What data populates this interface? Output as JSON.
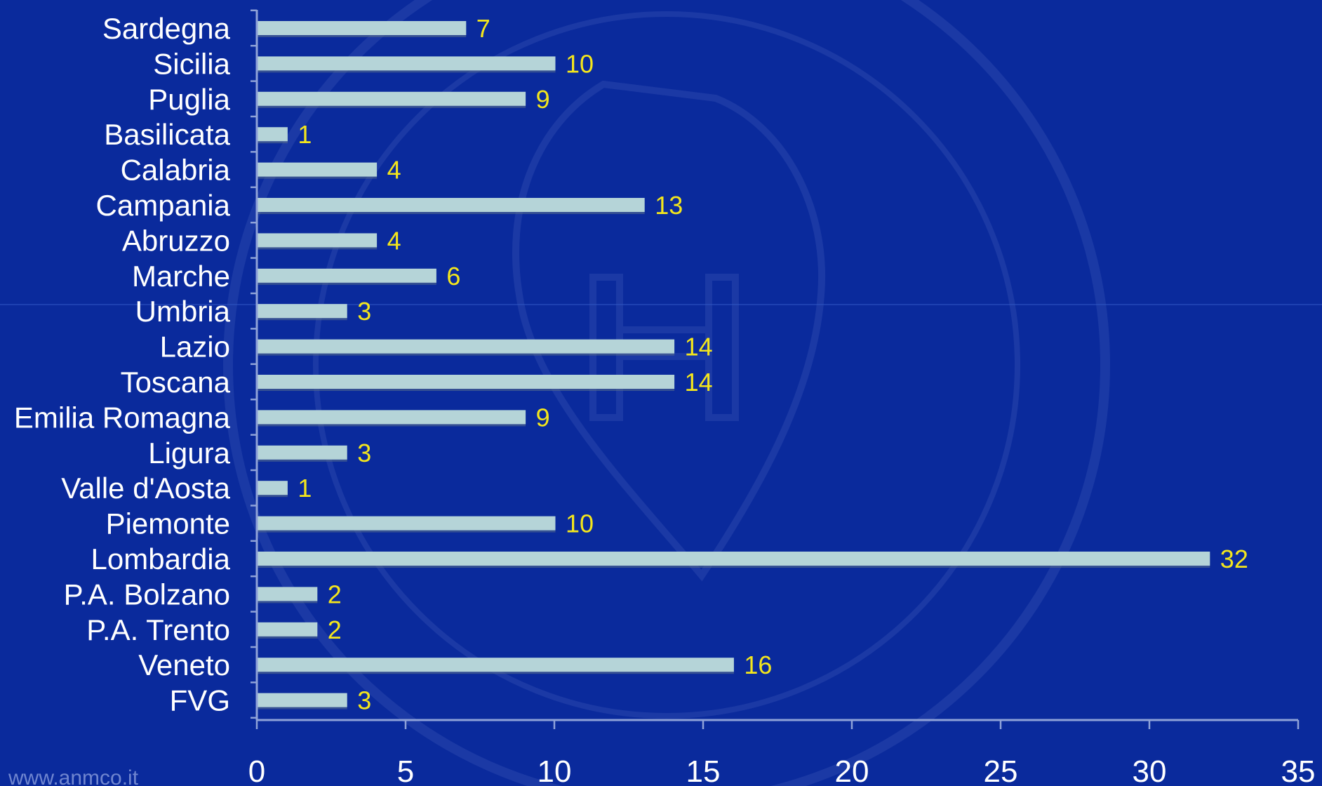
{
  "colors": {
    "background": "#0a2a9c",
    "bar": "#b5d4d8",
    "value_label": "#f4e61c",
    "text": "#ffffff",
    "axis": "#8fa2d8"
  },
  "footer": "www.anmco.it",
  "chart_data": {
    "type": "bar",
    "orientation": "horizontal",
    "title": "",
    "xlabel": "",
    "ylabel": "",
    "xlim": [
      0,
      35
    ],
    "ticks": [
      0,
      5,
      10,
      15,
      20,
      25,
      30,
      35
    ],
    "grid": false,
    "legend": "none",
    "categories": [
      "Sardegna",
      "Sicilia",
      "Puglia",
      "Basilicata",
      "Calabria",
      "Campania",
      "Abruzzo",
      "Marche",
      "Umbria",
      "Lazio",
      "Toscana",
      "Emilia Romagna",
      "Ligura",
      "Valle d'Aosta",
      "Piemonte",
      "Lombardia",
      "P.A. Bolzano",
      "P.A. Trento",
      "Veneto",
      "FVG"
    ],
    "values": [
      7,
      10,
      9,
      1,
      4,
      13,
      4,
      6,
      3,
      14,
      14,
      9,
      3,
      1,
      10,
      32,
      2,
      2,
      16,
      3
    ]
  }
}
